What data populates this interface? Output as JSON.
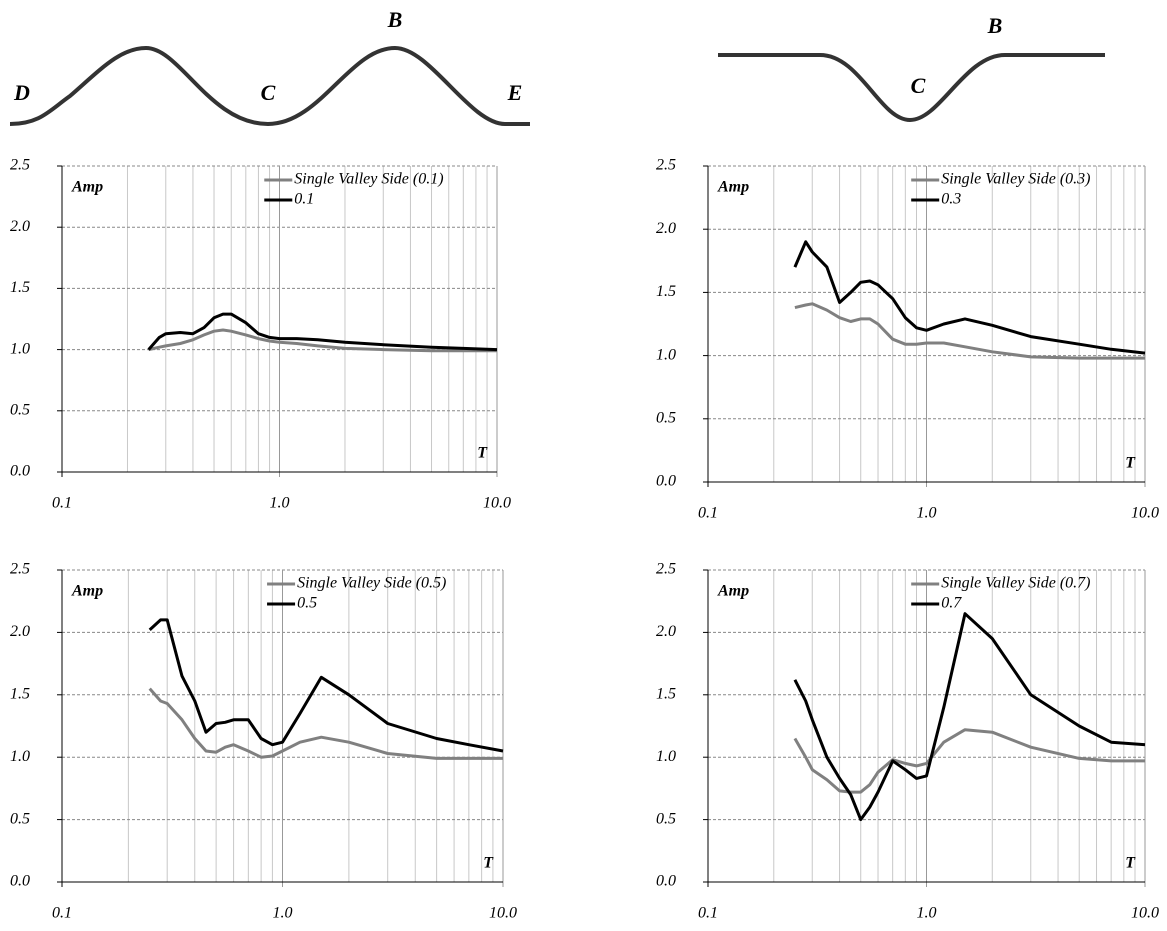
{
  "diagrams": [
    {
      "labels": [
        "D",
        "C",
        "B",
        "E"
      ]
    },
    {
      "labels": [
        "B",
        "C"
      ]
    }
  ],
  "chart_data": [
    {
      "type": "line",
      "ylabel": "Amp",
      "xlabel": "T",
      "log_x": true,
      "grid": true,
      "legend": "top-right",
      "xlim": [
        0.1,
        10
      ],
      "ylim": [
        0,
        2.5
      ],
      "xticks": [
        {
          "value": 0.1,
          "label": "0.1"
        },
        {
          "value": 1,
          "label": "1.0"
        },
        {
          "value": 10,
          "label": "10.0"
        }
      ],
      "xminorticks": [
        0.2,
        0.3,
        0.4,
        0.5,
        0.6,
        0.7,
        0.8,
        0.9,
        2,
        3,
        4,
        5,
        6,
        7,
        8,
        9
      ],
      "yticks": [
        {
          "value": 0,
          "label": "0.0"
        },
        0.5,
        {
          "value": 1,
          "label": "1.0"
        },
        1.5,
        {
          "value": 2,
          "label": "2.0"
        },
        2.5
      ],
      "x": [
        0.25,
        0.28,
        0.3,
        0.35,
        0.4,
        0.45,
        0.5,
        0.55,
        0.6,
        0.7,
        0.8,
        0.9,
        1.0,
        1.2,
        1.5,
        2,
        3,
        5,
        7,
        10
      ],
      "series": [
        {
          "name": "Single Valley Side (0.1)",
          "color": "#808080",
          "values": [
            1.0,
            1.02,
            1.03,
            1.05,
            1.08,
            1.12,
            1.15,
            1.16,
            1.15,
            1.12,
            1.09,
            1.07,
            1.06,
            1.05,
            1.03,
            1.01,
            1.0,
            0.99,
            0.99,
            0.99
          ]
        },
        {
          "name": "0.1",
          "color": "#000000",
          "values": [
            1.0,
            1.1,
            1.13,
            1.14,
            1.13,
            1.18,
            1.26,
            1.29,
            1.29,
            1.22,
            1.13,
            1.1,
            1.09,
            1.09,
            1.08,
            1.06,
            1.04,
            1.02,
            1.01,
            1.0
          ]
        }
      ]
    },
    {
      "type": "line",
      "ylabel": "Amp",
      "xlabel": "T",
      "log_x": true,
      "grid": true,
      "legend": "top-right",
      "xlim": [
        0.1,
        10
      ],
      "ylim": [
        0,
        2.5
      ],
      "xticks": [
        {
          "value": 0.1,
          "label": "0.1"
        },
        {
          "value": 1,
          "label": "1.0"
        },
        {
          "value": 10,
          "label": "10.0"
        }
      ],
      "xminorticks": [
        0.2,
        0.3,
        0.4,
        0.5,
        0.6,
        0.7,
        0.8,
        0.9,
        2,
        3,
        4,
        5,
        6,
        7,
        8,
        9
      ],
      "yticks": [
        {
          "value": 0,
          "label": "0.0"
        },
        0.5,
        {
          "value": 1,
          "label": "1.0"
        },
        1.5,
        {
          "value": 2,
          "label": "2.0"
        },
        2.5
      ],
      "x": [
        0.25,
        0.28,
        0.3,
        0.35,
        0.4,
        0.45,
        0.5,
        0.55,
        0.6,
        0.7,
        0.8,
        0.9,
        1.0,
        1.2,
        1.5,
        2,
        3,
        5,
        7,
        10
      ],
      "series": [
        {
          "name": "Single Valley Side (0.3)",
          "color": "#808080",
          "values": [
            1.38,
            1.4,
            1.41,
            1.36,
            1.3,
            1.27,
            1.29,
            1.29,
            1.25,
            1.13,
            1.09,
            1.09,
            1.1,
            1.1,
            1.07,
            1.03,
            0.99,
            0.98,
            0.98,
            0.98
          ]
        },
        {
          "name": "0.3",
          "color": "#000000",
          "values": [
            1.7,
            1.9,
            1.82,
            1.7,
            1.42,
            1.5,
            1.58,
            1.59,
            1.56,
            1.45,
            1.3,
            1.22,
            1.2,
            1.25,
            1.29,
            1.24,
            1.15,
            1.09,
            1.05,
            1.02
          ]
        }
      ]
    },
    {
      "type": "line",
      "ylabel": "Amp",
      "xlabel": "T",
      "log_x": true,
      "grid": true,
      "legend": "top-right",
      "xlim": [
        0.1,
        10
      ],
      "ylim": [
        0,
        2.5
      ],
      "xticks": [
        {
          "value": 0.1,
          "label": "0.1"
        },
        {
          "value": 1,
          "label": "1.0"
        },
        {
          "value": 10,
          "label": "10.0"
        }
      ],
      "xminorticks": [
        0.2,
        0.3,
        0.4,
        0.5,
        0.6,
        0.7,
        0.8,
        0.9,
        2,
        3,
        4,
        5,
        6,
        7,
        8,
        9
      ],
      "yticks": [
        {
          "value": 0,
          "label": "0.0"
        },
        0.5,
        {
          "value": 1,
          "label": "1.0"
        },
        1.5,
        {
          "value": 2,
          "label": "2.0"
        },
        2.5
      ],
      "x": [
        0.25,
        0.28,
        0.3,
        0.35,
        0.4,
        0.45,
        0.5,
        0.55,
        0.6,
        0.7,
        0.8,
        0.9,
        1.0,
        1.2,
        1.5,
        2,
        3,
        5,
        7,
        10
      ],
      "series": [
        {
          "name": "Single Valley Side (0.5)",
          "color": "#808080",
          "values": [
            1.55,
            1.45,
            1.43,
            1.3,
            1.15,
            1.05,
            1.04,
            1.08,
            1.1,
            1.05,
            1.0,
            1.01,
            1.05,
            1.12,
            1.16,
            1.12,
            1.03,
            0.99,
            0.99,
            0.99
          ]
        },
        {
          "name": "0.5",
          "color": "#000000",
          "values": [
            2.02,
            2.1,
            2.1,
            1.65,
            1.45,
            1.2,
            1.27,
            1.28,
            1.3,
            1.3,
            1.15,
            1.1,
            1.12,
            1.35,
            1.64,
            1.5,
            1.27,
            1.15,
            1.1,
            1.05
          ]
        }
      ]
    },
    {
      "type": "line",
      "ylabel": "Amp",
      "xlabel": "T",
      "log_x": true,
      "grid": true,
      "legend": "top-right",
      "xlim": [
        0.1,
        10
      ],
      "ylim": [
        0,
        2.5
      ],
      "xticks": [
        {
          "value": 0.1,
          "label": "0.1"
        },
        {
          "value": 1,
          "label": "1.0"
        },
        {
          "value": 10,
          "label": "10.0"
        }
      ],
      "xminorticks": [
        0.2,
        0.3,
        0.4,
        0.5,
        0.6,
        0.7,
        0.8,
        0.9,
        2,
        3,
        4,
        5,
        6,
        7,
        8,
        9
      ],
      "yticks": [
        {
          "value": 0,
          "label": "0.0"
        },
        0.5,
        {
          "value": 1,
          "label": "1.0"
        },
        1.5,
        {
          "value": 2,
          "label": "2.0"
        },
        2.5
      ],
      "x": [
        0.25,
        0.28,
        0.3,
        0.35,
        0.4,
        0.45,
        0.5,
        0.55,
        0.6,
        0.7,
        0.8,
        0.9,
        1.0,
        1.2,
        1.5,
        2,
        3,
        5,
        7,
        10
      ],
      "series": [
        {
          "name": "Single Valley Side (0.7)",
          "color": "#808080",
          "values": [
            1.15,
            1.0,
            0.9,
            0.82,
            0.73,
            0.72,
            0.72,
            0.78,
            0.88,
            0.98,
            0.95,
            0.93,
            0.95,
            1.12,
            1.22,
            1.2,
            1.08,
            0.99,
            0.97,
            0.97
          ]
        },
        {
          "name": "0.7",
          "color": "#000000",
          "values": [
            1.62,
            1.45,
            1.3,
            1.0,
            0.83,
            0.7,
            0.5,
            0.6,
            0.72,
            0.97,
            0.9,
            0.83,
            0.85,
            1.4,
            2.15,
            1.95,
            1.5,
            1.25,
            1.12,
            1.1
          ]
        }
      ]
    }
  ]
}
